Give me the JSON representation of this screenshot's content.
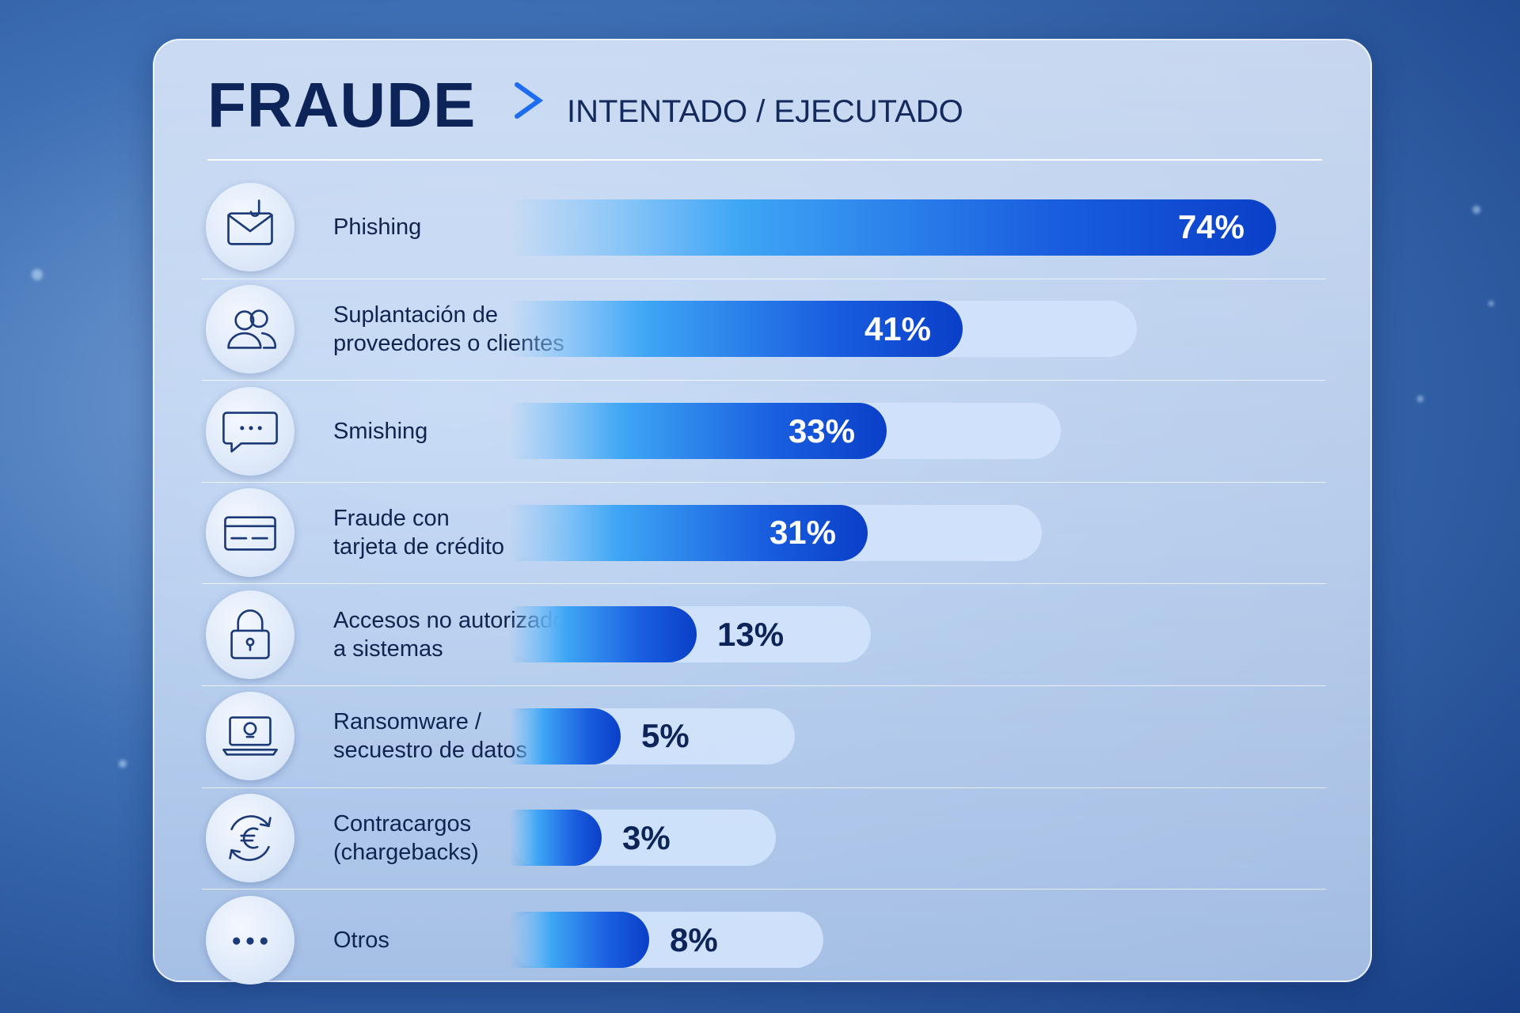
{
  "chart_data": {
    "type": "bar",
    "orientation": "horizontal",
    "title": "FRAUDE",
    "subtitle": "INTENTADO / EJECUTADO",
    "categories": [
      "Phishing",
      "Suplantación de\nproveedores o clientes",
      "Smishing",
      "Fraude con\ntarjeta de crédito",
      "Accesos no autorizados\na sistemas",
      "Ransomware /\nsecuestro de datos",
      "Contracargos\n(chargebacks)",
      "Otros"
    ],
    "values": [
      74,
      41,
      33,
      31,
      13,
      5,
      3,
      8
    ],
    "value_labels": [
      "74%",
      "41%",
      "33%",
      "31%",
      "13%",
      "5%",
      "3%",
      "8%"
    ],
    "color": "#0a3fc8"
  }
}
